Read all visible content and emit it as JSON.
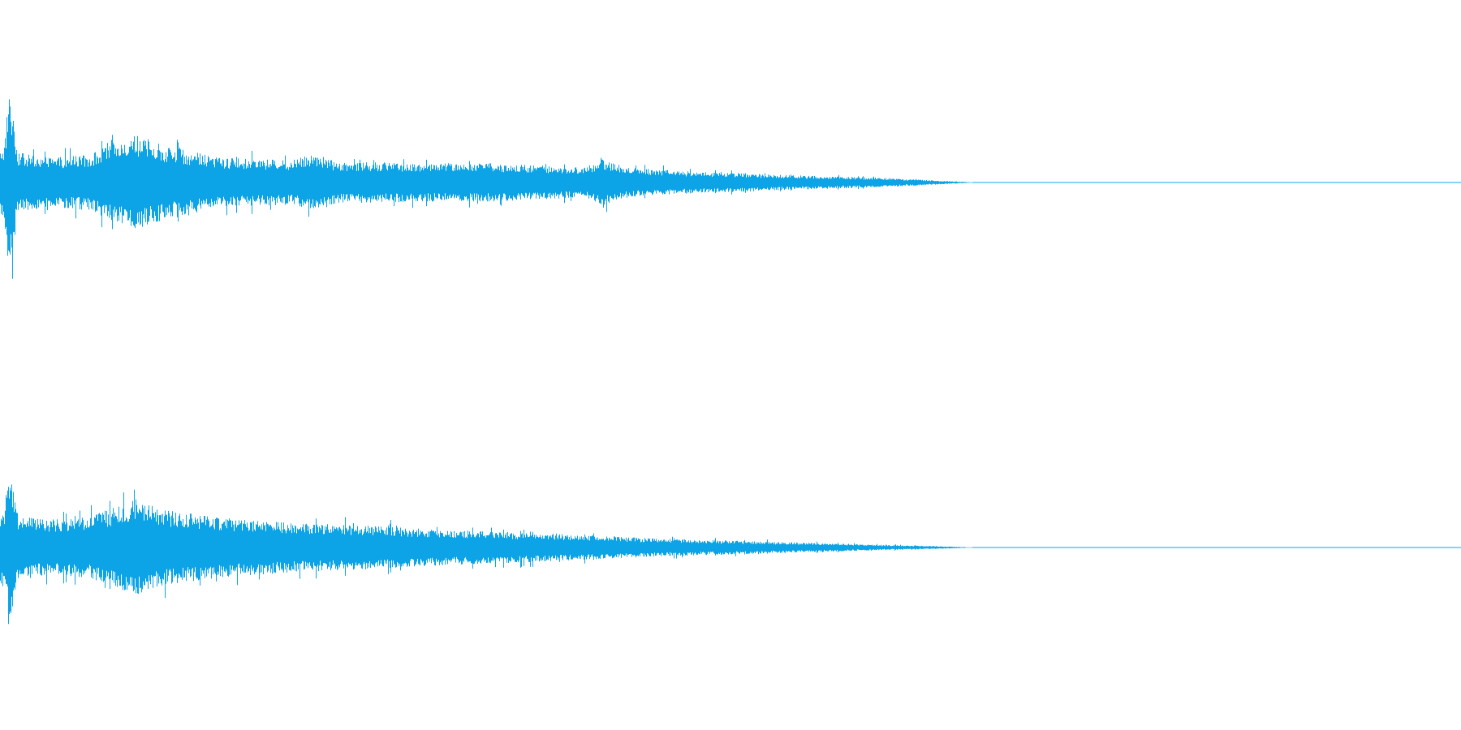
{
  "waveform": {
    "color": "#0ca4e6",
    "background": "#ffffff",
    "channels": [
      {
        "name": "left",
        "peak_amplitude": 0.72,
        "envelope": [
          [
            0.0,
            0.24
          ],
          [
            0.003,
            0.3
          ],
          [
            0.006,
            0.72
          ],
          [
            0.008,
            0.55
          ],
          [
            0.012,
            0.22
          ],
          [
            0.03,
            0.18
          ],
          [
            0.06,
            0.2
          ],
          [
            0.08,
            0.3
          ],
          [
            0.095,
            0.34
          ],
          [
            0.115,
            0.26
          ],
          [
            0.15,
            0.18
          ],
          [
            0.2,
            0.16
          ],
          [
            0.215,
            0.22
          ],
          [
            0.23,
            0.15
          ],
          [
            0.3,
            0.14
          ],
          [
            0.335,
            0.14
          ],
          [
            0.4,
            0.11
          ],
          [
            0.412,
            0.17
          ],
          [
            0.43,
            0.11
          ],
          [
            0.47,
            0.08
          ],
          [
            0.5,
            0.07
          ],
          [
            0.55,
            0.05
          ],
          [
            0.6,
            0.035
          ],
          [
            0.64,
            0.015
          ],
          [
            0.66,
            0.004
          ],
          [
            0.67,
            0.0
          ],
          [
            1.0,
            0.0
          ]
        ]
      },
      {
        "name": "right",
        "peak_amplitude": 0.6,
        "envelope": [
          [
            0.0,
            0.26
          ],
          [
            0.003,
            0.3
          ],
          [
            0.006,
            0.6
          ],
          [
            0.008,
            0.48
          ],
          [
            0.012,
            0.24
          ],
          [
            0.03,
            0.2
          ],
          [
            0.06,
            0.22
          ],
          [
            0.08,
            0.3
          ],
          [
            0.093,
            0.35
          ],
          [
            0.11,
            0.28
          ],
          [
            0.15,
            0.22
          ],
          [
            0.2,
            0.18
          ],
          [
            0.25,
            0.16
          ],
          [
            0.3,
            0.13
          ],
          [
            0.33,
            0.12
          ],
          [
            0.4,
            0.09
          ],
          [
            0.42,
            0.08
          ],
          [
            0.45,
            0.065
          ],
          [
            0.5,
            0.05
          ],
          [
            0.55,
            0.035
          ],
          [
            0.6,
            0.02
          ],
          [
            0.64,
            0.01
          ],
          [
            0.66,
            0.003
          ],
          [
            0.67,
            0.0
          ],
          [
            1.0,
            0.0
          ]
        ]
      }
    ]
  }
}
